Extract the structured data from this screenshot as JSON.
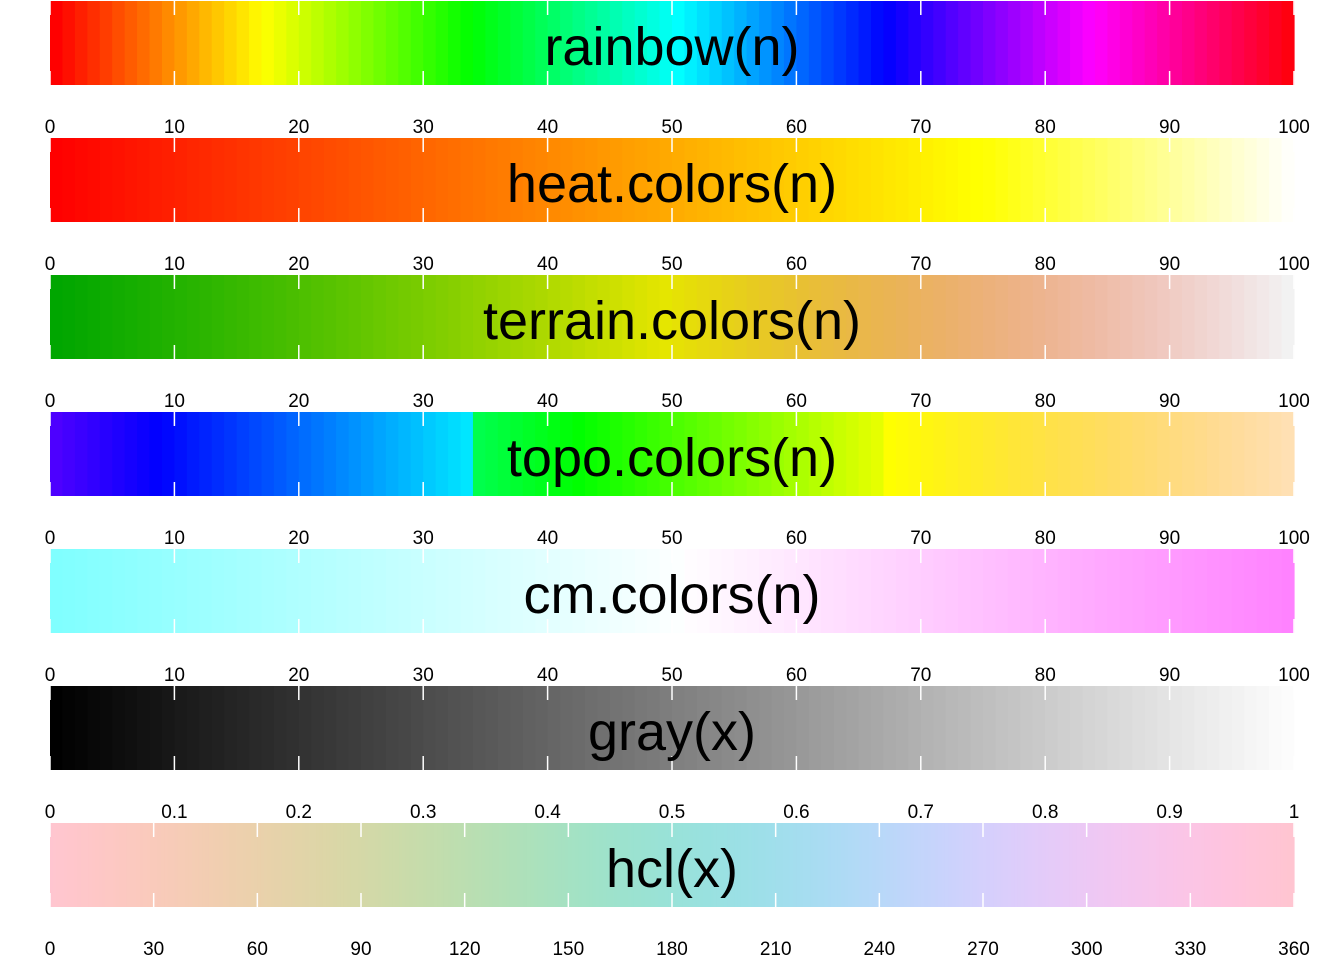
{
  "chart_data": {
    "type": "heatmap",
    "palettes": [
      {
        "title": "rainbow(n)",
        "function": "rainbow",
        "n": 100,
        "xlim": [
          0,
          100
        ],
        "ticks": [
          "0",
          "10",
          "20",
          "30",
          "40",
          "50",
          "60",
          "70",
          "80",
          "90",
          "100"
        ]
      },
      {
        "title": "heat.colors(n)",
        "function": "heat.colors",
        "n": 100,
        "xlim": [
          0,
          100
        ],
        "ticks": [
          "0",
          "10",
          "20",
          "30",
          "40",
          "50",
          "60",
          "70",
          "80",
          "90",
          "100"
        ]
      },
      {
        "title": "terrain.colors(n)",
        "function": "terrain.colors",
        "n": 100,
        "xlim": [
          0,
          100
        ],
        "ticks": [
          "0",
          "10",
          "20",
          "30",
          "40",
          "50",
          "60",
          "70",
          "80",
          "90",
          "100"
        ]
      },
      {
        "title": "topo.colors(n)",
        "function": "topo.colors",
        "n": 100,
        "xlim": [
          0,
          100
        ],
        "ticks": [
          "0",
          "10",
          "20",
          "30",
          "40",
          "50",
          "60",
          "70",
          "80",
          "90",
          "100"
        ]
      },
      {
        "title": "cm.colors(n)",
        "function": "cm.colors",
        "n": 100,
        "xlim": [
          0,
          100
        ],
        "ticks": [
          "0",
          "10",
          "20",
          "30",
          "40",
          "50",
          "60",
          "70",
          "80",
          "90",
          "100"
        ]
      },
      {
        "title": "gray(x)",
        "function": "gray",
        "n": 100,
        "xlim": [
          0,
          1
        ],
        "ticks": [
          "0",
          "0.1",
          "0.2",
          "0.3",
          "0.4",
          "0.5",
          "0.6",
          "0.7",
          "0.8",
          "0.9",
          "1"
        ]
      },
      {
        "title": "hcl(x)",
        "function": "hcl",
        "n": 360,
        "xlim": [
          0,
          360
        ],
        "ticks": [
          "0",
          "30",
          "60",
          "90",
          "120",
          "150",
          "180",
          "210",
          "240",
          "270",
          "300",
          "330",
          "360"
        ]
      }
    ]
  }
}
